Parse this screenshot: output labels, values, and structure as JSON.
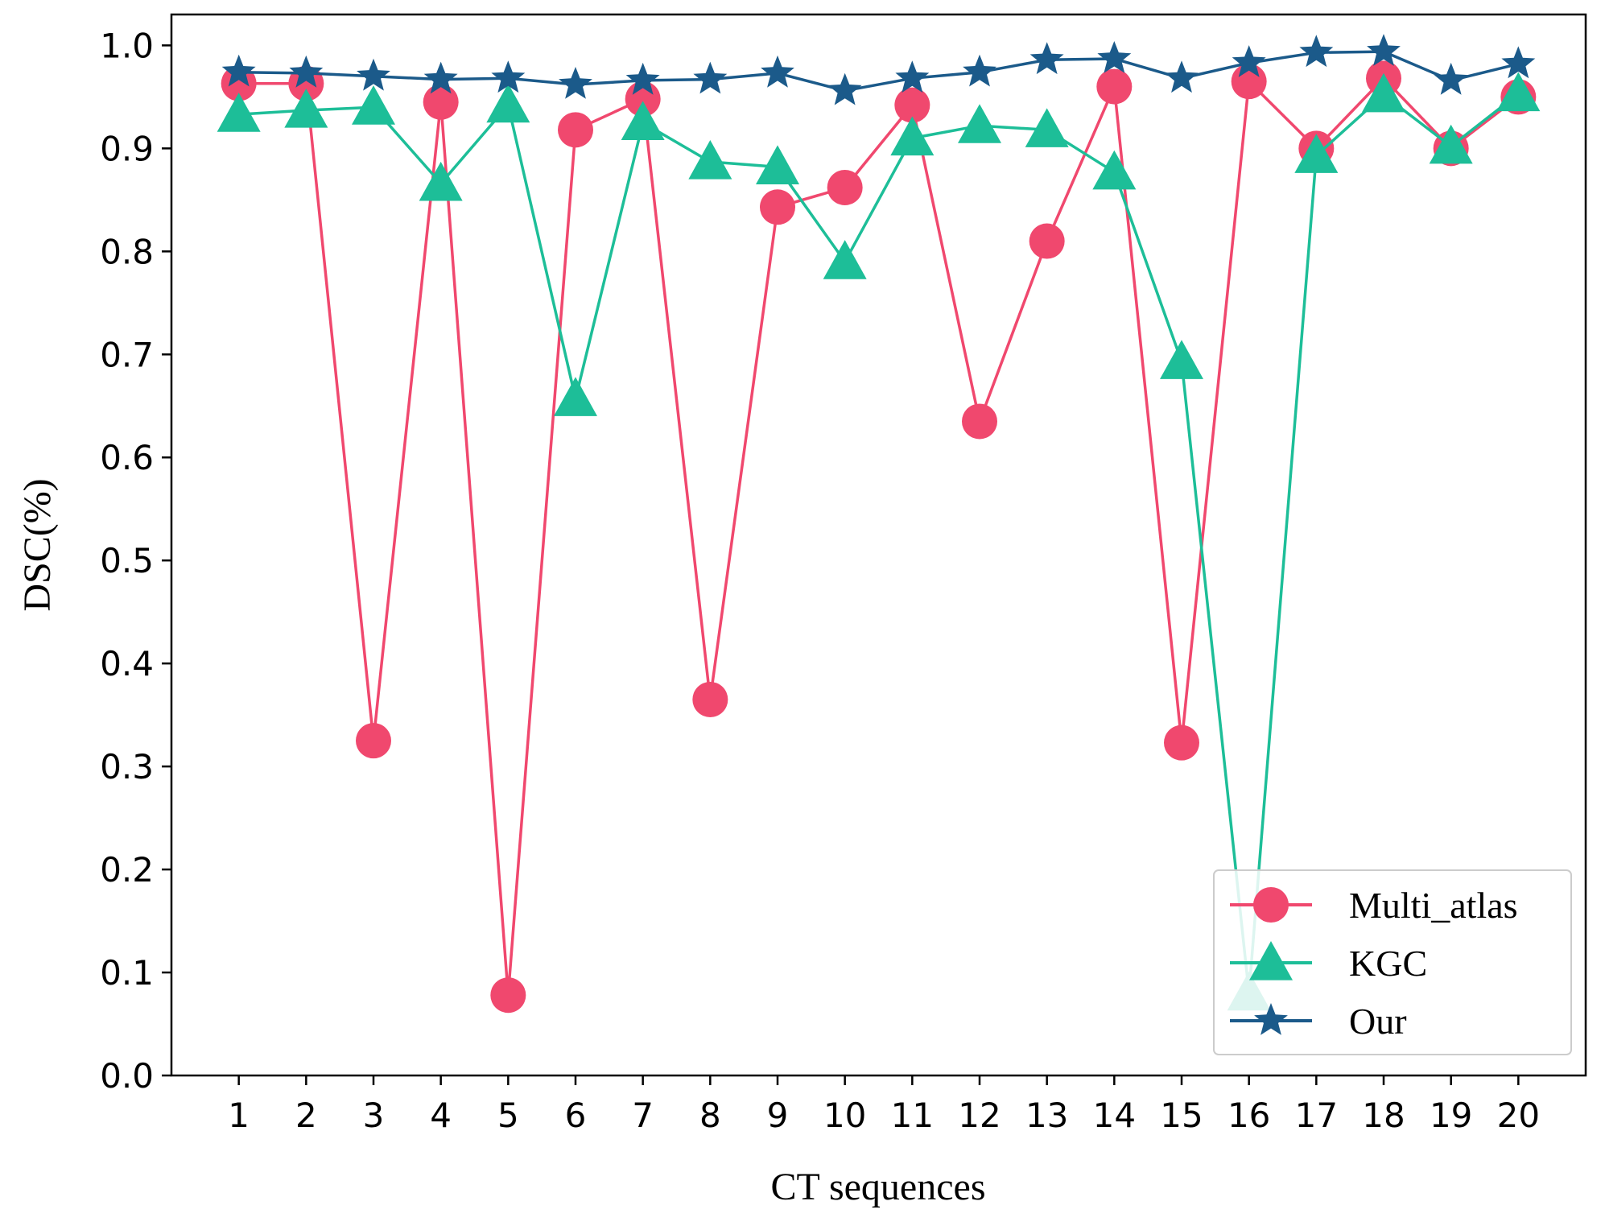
{
  "chart_data": {
    "type": "line",
    "title": "",
    "xlabel": "CT sequences",
    "ylabel": "DSC(%)",
    "x": [
      1,
      2,
      3,
      4,
      5,
      6,
      7,
      8,
      9,
      10,
      11,
      12,
      13,
      14,
      15,
      16,
      17,
      18,
      19,
      20
    ],
    "x_tick_labels": [
      "1",
      "2",
      "3",
      "4",
      "5",
      "6",
      "7",
      "8",
      "9",
      "10",
      "11",
      "12",
      "13",
      "14",
      "15",
      "16",
      "17",
      "18",
      "19",
      "20"
    ],
    "y_ticks": [
      0.0,
      0.1,
      0.2,
      0.3,
      0.4,
      0.5,
      0.6,
      0.7,
      0.8,
      0.9,
      1.0
    ],
    "y_tick_labels": [
      "0.0",
      "0.1",
      "0.2",
      "0.3",
      "0.4",
      "0.5",
      "0.6",
      "0.7",
      "0.8",
      "0.9",
      "1.0"
    ],
    "xlim": [
      0,
      21
    ],
    "ylim": [
      0,
      1.03
    ],
    "grid": false,
    "legend_position": "bottom-right",
    "series": [
      {
        "name": "Multi_atlas",
        "color": "#f0486e",
        "marker": "circle",
        "values": [
          0.963,
          0.963,
          0.325,
          0.945,
          0.078,
          0.918,
          0.948,
          0.365,
          0.843,
          0.862,
          0.942,
          0.635,
          0.81,
          0.96,
          0.323,
          0.965,
          0.9,
          0.968,
          0.9,
          0.95
        ]
      },
      {
        "name": "KGC",
        "color": "#1dbe98",
        "marker": "triangle",
        "values": [
          0.933,
          0.937,
          0.94,
          0.866,
          0.942,
          0.657,
          0.925,
          0.887,
          0.882,
          0.79,
          0.91,
          0.922,
          0.918,
          0.877,
          0.693,
          0.08,
          0.893,
          0.952,
          0.902,
          0.953
        ]
      },
      {
        "name": "Our",
        "color": "#1b5a8a",
        "marker": "star",
        "values": [
          0.974,
          0.973,
          0.97,
          0.967,
          0.968,
          0.962,
          0.966,
          0.967,
          0.973,
          0.956,
          0.968,
          0.974,
          0.986,
          0.987,
          0.968,
          0.983,
          0.993,
          0.994,
          0.966,
          0.982
        ]
      }
    ]
  }
}
